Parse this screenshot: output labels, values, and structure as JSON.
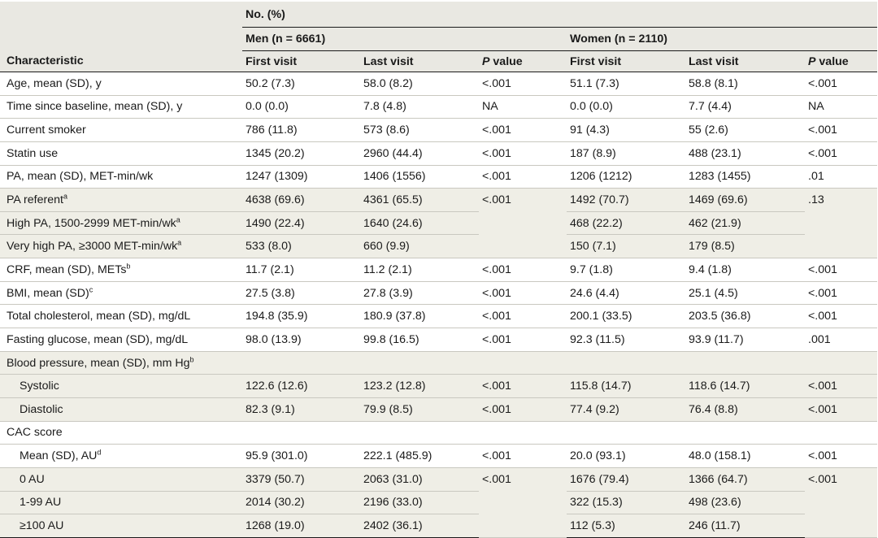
{
  "header": {
    "group": "No. (%)",
    "men": "Men (n = 6661)",
    "women": "Women (n = 2110)",
    "characteristic": "Characteristic",
    "first_visit": "First visit",
    "last_visit": "Last visit",
    "p_letter": "P",
    "p_rest": " value"
  },
  "rows": [
    {
      "label": "Age, mean (SD), y",
      "m1": "50.2 (7.3)",
      "m2": "58.0 (8.2)",
      "mp": "<.001",
      "w1": "51.1 (7.3)",
      "w2": "58.8 (8.1)",
      "wp": "<.001"
    },
    {
      "label": "Time since baseline, mean (SD), y",
      "m1": "0.0 (0.0)",
      "m2": "7.8 (4.8)",
      "mp": "NA",
      "w1": "0.0 (0.0)",
      "w2": "7.7 (4.4)",
      "wp": "NA"
    },
    {
      "label": "Current smoker",
      "m1": "786 (11.8)",
      "m2": "573 (8.6)",
      "mp": "<.001",
      "w1": "91 (4.3)",
      "w2": "55 (2.6)",
      "wp": "<.001"
    },
    {
      "label": "Statin use",
      "m1": "1345 (20.2)",
      "m2": "2960 (44.4)",
      "mp": "<.001",
      "w1": "187 (8.9)",
      "w2": "488 (23.1)",
      "wp": "<.001"
    },
    {
      "label": "PA, mean (SD), MET-min/wk",
      "m1": "1247 (1309)",
      "m2": "1406 (1556)",
      "mp": "<.001",
      "w1": "1206 (1212)",
      "w2": "1283 (1455)",
      "wp": ".01"
    },
    {
      "label": "PA referent",
      "sup": "a",
      "m1": "4638 (69.6)",
      "m2": "4361 (65.5)",
      "mp": "<.001",
      "w1": "1492 (70.7)",
      "w2": "1469 (69.6)",
      "wp": ".13"
    },
    {
      "label": "High PA, 1500-2999 MET-min/wk",
      "sup": "a",
      "m1": "1490 (22.4)",
      "m2": "1640 (24.6)",
      "w1": "468 (22.2)",
      "w2": "462 (21.9)"
    },
    {
      "label": "Very high PA, ≥3000 MET-min/wk",
      "sup": "a",
      "m1": "533 (8.0)",
      "m2": "660 (9.9)",
      "w1": "150 (7.1)",
      "w2": "179 (8.5)"
    },
    {
      "label": "CRF, mean (SD), METs",
      "sup": "b",
      "m1": "11.7 (2.1)",
      "m2": "11.2 (2.1)",
      "mp": "<.001",
      "w1": "9.7 (1.8)",
      "w2": "9.4 (1.8)",
      "wp": "<.001"
    },
    {
      "label": "BMI, mean (SD)",
      "sup": "c",
      "m1": "27.5 (3.8)",
      "m2": "27.8 (3.9)",
      "mp": "<.001",
      "w1": "24.6 (4.4)",
      "w2": "25.1 (4.5)",
      "wp": "<.001"
    },
    {
      "label": "Total cholesterol, mean (SD), mg/dL",
      "m1": "194.8 (35.9)",
      "m2": "180.9 (37.8)",
      "mp": "<.001",
      "w1": "200.1 (33.5)",
      "w2": "203.5 (36.8)",
      "wp": "<.001"
    },
    {
      "label": "Fasting glucose, mean (SD), mg/dL",
      "m1": "98.0 (13.9)",
      "m2": "99.8 (16.5)",
      "mp": "<.001",
      "w1": "92.3 (11.5)",
      "w2": "93.9 (11.7)",
      "wp": ".001"
    },
    {
      "label": "Blood pressure, mean (SD), mm Hg",
      "sup": "b"
    },
    {
      "label": "Systolic",
      "m1": "122.6 (12.6)",
      "m2": "123.2 (12.8)",
      "mp": "<.001",
      "w1": "115.8 (14.7)",
      "w2": "118.6 (14.7)",
      "wp": "<.001"
    },
    {
      "label": "Diastolic",
      "m1": "82.3 (9.1)",
      "m2": "79.9 (8.5)",
      "mp": "<.001",
      "w1": "77.4 (9.2)",
      "w2": "76.4 (8.8)",
      "wp": "<.001"
    },
    {
      "label": "CAC score"
    },
    {
      "label": "Mean (SD), AU",
      "sup": "d",
      "m1": "95.9 (301.0)",
      "m2": "222.1 (485.9)",
      "mp": "<.001",
      "w1": "20.0 (93.1)",
      "w2": "48.0 (158.1)",
      "wp": "<.001"
    },
    {
      "label": "0 AU",
      "m1": "3379 (50.7)",
      "m2": "2063 (31.0)",
      "mp": "<.001",
      "w1": "1676 (79.4)",
      "w2": "1366 (64.7)",
      "wp": "<.001"
    },
    {
      "label": "1-99 AU",
      "m1": "2014 (30.2)",
      "m2": "2196 (33.0)",
      "w1": "322 (15.3)",
      "w2": "498 (23.6)"
    },
    {
      "label": "≥100 AU",
      "m1": "1268 (19.0)",
      "m2": "2402 (36.1)",
      "w1": "112 (5.3)",
      "w2": "246 (11.7)"
    }
  ]
}
